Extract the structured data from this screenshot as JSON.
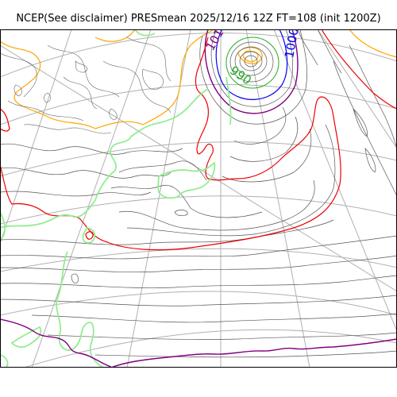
{
  "title": "NCEP(See disclaimer) PRESmean 2025/12/16 12Z FT=108 (init 1200Z)",
  "contour_labels": {
    "label_1000": "1000",
    "label_990": "990",
    "label_1010": "1010"
  },
  "colors": {
    "isobar": "#555555",
    "contour_1000": "#0000ee",
    "contour_990": "#22aa22",
    "contour_1010": "#800080",
    "low_center": "#ff8c00",
    "contour_red": "#ee0000",
    "contour_orange": "#ffa500",
    "contour_lightgreen": "#90ee90",
    "graticule": "#b0b0b0"
  }
}
